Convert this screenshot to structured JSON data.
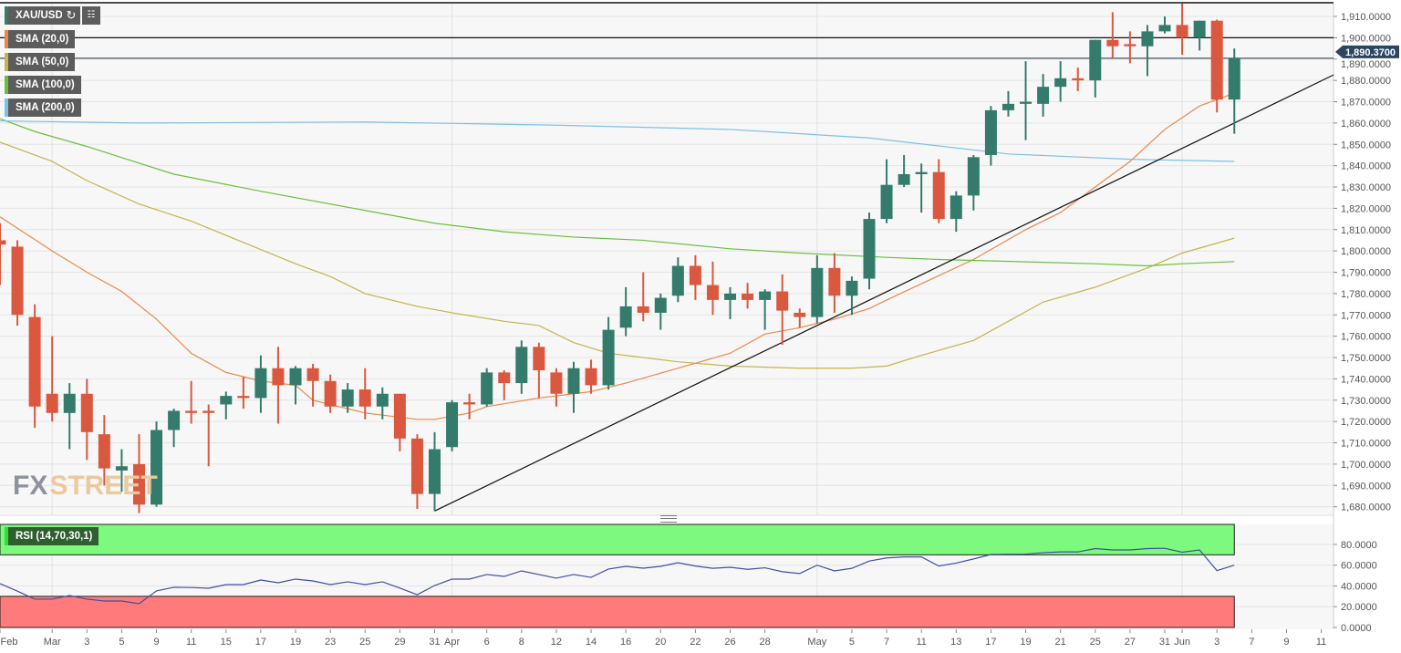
{
  "toolbar": {
    "symbol": "XAU/USD",
    "refresh_icon": "refresh-icon",
    "chart_settings_icon": "chart-settings-icon"
  },
  "legend": [
    {
      "label": "SMA (20,0)",
      "color": "#e8894a"
    },
    {
      "label": "SMA (50,0)",
      "color": "#c4b44c"
    },
    {
      "label": "SMA (100,0)",
      "color": "#6cbf3c"
    },
    {
      "label": "SMA (200,0)",
      "color": "#7cc0e8"
    }
  ],
  "watermark": {
    "part1": "FX",
    "part2": "STREET"
  },
  "rsi_label": "RSI (14,70,30,1)",
  "chart_data": {
    "type": "candlestick",
    "symbol": "XAU/USD",
    "colors": {
      "up": "#347b6c",
      "down": "#d9583f",
      "sma20": "#e8894a",
      "sma50": "#c4b44c",
      "sma100": "#6cbf3c",
      "sma200": "#7cc0e8",
      "rsi": "#3f4fa0",
      "overbought_zone": "#7dfa7d",
      "oversold_zone": "#ff7b7b",
      "price_tag": "#2c4563"
    },
    "ylim": [
      1676,
      1916
    ],
    "y_ticks": [
      "1,680.0000",
      "1,690.0000",
      "1,700.0000",
      "1,710.0000",
      "1,720.0000",
      "1,730.0000",
      "1,740.0000",
      "1,750.0000",
      "1,760.0000",
      "1,770.0000",
      "1,780.0000",
      "1,790.0000",
      "1,800.0000",
      "1,810.0000",
      "1,820.0000",
      "1,830.0000",
      "1,840.0000",
      "1,850.0000",
      "1,860.0000",
      "1,870.0000",
      "1,880.0000",
      "1,890.0000",
      "1,900.0000",
      "1,910.0000"
    ],
    "last_price_label": "1,890.3700",
    "last_price": 1890.37,
    "horizontal_lines": [
      1900,
      1890.37
    ],
    "trendline": [
      {
        "date": "Mar 31",
        "price": 1678
      },
      {
        "date": "Jun 4",
        "price": 1860
      }
    ],
    "candles_columns": [
      "date",
      "open",
      "high",
      "low",
      "close"
    ],
    "candles": [
      [
        "Feb 24",
        1805,
        1813,
        1784,
        1803
      ],
      [
        "Feb 25",
        1802,
        1805,
        1765,
        1770
      ],
      [
        "Feb 26",
        1769,
        1775,
        1717,
        1727
      ],
      [
        "Mar 1",
        1733,
        1760,
        1720,
        1724
      ],
      [
        "Mar 2",
        1724,
        1738,
        1707,
        1733
      ],
      [
        "Mar 3",
        1733,
        1740,
        1702,
        1715
      ],
      [
        "Mar 4",
        1714,
        1723,
        1690,
        1698
      ],
      [
        "Mar 5",
        1697,
        1707,
        1687,
        1699
      ],
      [
        "Mar 8",
        1700,
        1714,
        1677,
        1681
      ],
      [
        "Mar 9",
        1681,
        1720,
        1680,
        1716
      ],
      [
        "Mar 10",
        1716,
        1726,
        1708,
        1725
      ],
      [
        "Mar 11",
        1725,
        1739,
        1719,
        1724
      ],
      [
        "Mar 12",
        1725,
        1728,
        1699,
        1724
      ],
      [
        "Mar 15",
        1728,
        1734,
        1721,
        1732
      ],
      [
        "Mar 16",
        1732,
        1741,
        1726,
        1731
      ],
      [
        "Mar 17",
        1731,
        1751,
        1724,
        1745
      ],
      [
        "Mar 18",
        1745,
        1755,
        1719,
        1737
      ],
      [
        "Mar 19",
        1737,
        1746,
        1728,
        1745
      ],
      [
        "Mar 22",
        1745,
        1747,
        1727,
        1739
      ],
      [
        "Mar 23",
        1739,
        1742,
        1724,
        1727
      ],
      [
        "Mar 24",
        1727,
        1738,
        1724,
        1735
      ],
      [
        "Mar 25",
        1735,
        1745,
        1721,
        1727
      ],
      [
        "Mar 26",
        1727,
        1736,
        1721,
        1733
      ],
      [
        "Mar 29",
        1733,
        1733,
        1706,
        1712
      ],
      [
        "Mar 30",
        1712,
        1714,
        1679,
        1686
      ],
      [
        "Mar 31",
        1686,
        1715,
        1678,
        1707
      ],
      [
        "Apr 1",
        1708,
        1730,
        1706,
        1729
      ],
      [
        "Apr 5",
        1729,
        1733,
        1721,
        1728
      ],
      [
        "Apr 6",
        1728,
        1745,
        1727,
        1743
      ],
      [
        "Apr 7",
        1743,
        1744,
        1730,
        1738
      ],
      [
        "Apr 8",
        1738,
        1758,
        1733,
        1755
      ],
      [
        "Apr 9",
        1755,
        1757,
        1731,
        1744
      ],
      [
        "Apr 12",
        1743,
        1745,
        1727,
        1733
      ],
      [
        "Apr 13",
        1733,
        1748,
        1724,
        1745
      ],
      [
        "Apr 14",
        1745,
        1749,
        1733,
        1737
      ],
      [
        "Apr 15",
        1737,
        1769,
        1735,
        1763
      ],
      [
        "Apr 16",
        1764,
        1783,
        1760,
        1774
      ],
      [
        "Apr 19",
        1774,
        1790,
        1767,
        1771
      ],
      [
        "Apr 20",
        1771,
        1780,
        1763,
        1778
      ],
      [
        "Apr 21",
        1779,
        1797,
        1776,
        1793
      ],
      [
        "Apr 22",
        1793,
        1798,
        1777,
        1784
      ],
      [
        "Apr 23",
        1784,
        1795,
        1770,
        1777
      ],
      [
        "Apr 26",
        1777,
        1783,
        1768,
        1780
      ],
      [
        "Apr 27",
        1780,
        1785,
        1773,
        1777
      ],
      [
        "Apr 28",
        1777,
        1782,
        1763,
        1781
      ],
      [
        "Apr 29",
        1781,
        1789,
        1756,
        1772
      ],
      [
        "Apr 30",
        1771,
        1773,
        1764,
        1769
      ],
      [
        "May 3",
        1769,
        1798,
        1766,
        1792
      ],
      [
        "May 4",
        1792,
        1799,
        1771,
        1779
      ],
      [
        "May 5",
        1779,
        1788,
        1770,
        1786
      ],
      [
        "May 6",
        1787,
        1818,
        1782,
        1815
      ],
      [
        "May 7",
        1815,
        1843,
        1813,
        1831
      ],
      [
        "May 10",
        1831,
        1845,
        1830,
        1836
      ],
      [
        "May 11",
        1836,
        1841,
        1818,
        1837
      ],
      [
        "May 12",
        1837,
        1843,
        1813,
        1815
      ],
      [
        "May 13",
        1815,
        1828,
        1809,
        1826
      ],
      [
        "May 14",
        1826,
        1845,
        1819,
        1844
      ],
      [
        "May 17",
        1845,
        1868,
        1840,
        1866
      ],
      [
        "May 18",
        1866,
        1875,
        1863,
        1869
      ],
      [
        "May 19",
        1869,
        1889,
        1852,
        1870
      ],
      [
        "May 20",
        1869,
        1883,
        1863,
        1877
      ],
      [
        "May 21",
        1877,
        1889,
        1870,
        1881
      ],
      [
        "May 24",
        1881,
        1886,
        1875,
        1880
      ],
      [
        "May 25",
        1880,
        1899,
        1872,
        1899
      ],
      [
        "May 26",
        1899,
        1912,
        1890,
        1896
      ],
      [
        "May 27",
        1897,
        1903,
        1888,
        1896
      ],
      [
        "May 28",
        1896,
        1906,
        1882,
        1903
      ],
      [
        "May 31",
        1903,
        1910,
        1902,
        1906
      ],
      [
        "Jun 1",
        1906,
        1916,
        1892,
        1900
      ],
      [
        "Jun 2",
        1900,
        1908,
        1894,
        1908
      ],
      [
        "Jun 3",
        1908,
        1908.5,
        1865,
        1871
      ],
      [
        "Jun 4",
        1871,
        1895,
        1855,
        1890.37
      ]
    ],
    "sma": [
      {
        "name": "SMA (20,0)",
        "points": [
          [
            "Feb 24",
            1816
          ],
          [
            "Mar 1",
            1800
          ],
          [
            "Mar 3",
            1790
          ],
          [
            "Mar 5",
            1781
          ],
          [
            "Mar 9",
            1768
          ],
          [
            "Mar 11",
            1752
          ],
          [
            "Mar 15",
            1743
          ],
          [
            "Mar 17",
            1739
          ],
          [
            "Mar 19",
            1737
          ],
          [
            "Mar 22",
            1730
          ],
          [
            "Mar 25",
            1724
          ],
          [
            "Mar 30",
            1721
          ],
          [
            "Mar 31",
            1721
          ],
          [
            "Apr 5",
            1724
          ],
          [
            "Apr 6",
            1727
          ],
          [
            "Apr 9",
            1731
          ],
          [
            "Apr 14",
            1734
          ],
          [
            "Apr 16",
            1738
          ],
          [
            "Apr 21",
            1745
          ],
          [
            "Apr 26",
            1752
          ],
          [
            "Apr 28",
            1761
          ],
          [
            "Apr 30",
            1764
          ],
          [
            "May 4",
            1768
          ],
          [
            "May 6",
            1773
          ],
          [
            "May 7",
            1777
          ],
          [
            "May 14",
            1796
          ],
          [
            "May 19",
            1810
          ],
          [
            "May 21",
            1818
          ],
          [
            "May 25",
            1830
          ],
          [
            "May 27",
            1842
          ],
          [
            "May 31",
            1857
          ],
          [
            "Jun 2",
            1868
          ],
          [
            "Jun 4",
            1874
          ]
        ]
      },
      {
        "name": "SMA (50,0)",
        "points": [
          [
            "Feb 24",
            1851
          ],
          [
            "Mar 1",
            1842
          ],
          [
            "Mar 3",
            1833
          ],
          [
            "Mar 8",
            1822
          ],
          [
            "Mar 11",
            1814
          ],
          [
            "Mar 16",
            1804
          ],
          [
            "Mar 19",
            1794
          ],
          [
            "Mar 23",
            1788
          ],
          [
            "Mar 25",
            1780
          ],
          [
            "Mar 30",
            1774
          ],
          [
            "Apr 1",
            1771
          ],
          [
            "Apr 7",
            1767
          ],
          [
            "Apr 9",
            1765
          ],
          [
            "Apr 13",
            1757
          ],
          [
            "Apr 15",
            1752
          ],
          [
            "Apr 21",
            1748
          ],
          [
            "Apr 26",
            1746
          ],
          [
            "Apr 30",
            1745
          ],
          [
            "May 5",
            1745
          ],
          [
            "May 7",
            1746
          ],
          [
            "May 11",
            1751
          ],
          [
            "May 14",
            1758
          ],
          [
            "May 18",
            1767
          ],
          [
            "May 20",
            1776
          ],
          [
            "May 25",
            1783
          ],
          [
            "May 28",
            1792
          ],
          [
            "Jun 1",
            1799
          ],
          [
            "Jun 4",
            1806
          ]
        ]
      },
      {
        "name": "SMA (100,0)",
        "points": [
          [
            "Feb 24",
            1862
          ],
          [
            "Feb 26",
            1856
          ],
          [
            "Mar 3",
            1849
          ],
          [
            "Mar 10",
            1836
          ],
          [
            "Mar 17",
            1828
          ],
          [
            "Mar 25",
            1819
          ],
          [
            "Mar 31",
            1813
          ],
          [
            "Apr 7",
            1809
          ],
          [
            "Apr 13",
            1806.5
          ],
          [
            "Apr 19",
            1805
          ],
          [
            "Apr 26",
            1801
          ],
          [
            "Apr 30",
            1799
          ],
          [
            "May 7",
            1797
          ],
          [
            "May 12",
            1796
          ],
          [
            "May 25",
            1794
          ],
          [
            "May 28",
            1793
          ],
          [
            "Jun 1",
            1794
          ],
          [
            "Jun 4",
            1795
          ]
        ]
      },
      {
        "name": "SMA (200,0)",
        "points": [
          [
            "Feb 24",
            1861
          ],
          [
            "Mar 8",
            1860
          ],
          [
            "Mar 25",
            1860.5
          ],
          [
            "Apr 12",
            1859
          ],
          [
            "Apr 26",
            1857
          ],
          [
            "May 6",
            1853
          ],
          [
            "May 18",
            1845.5
          ],
          [
            "May 27",
            1843
          ],
          [
            "Jun 4",
            1842
          ]
        ]
      }
    ],
    "rsi": {
      "label": "RSI (14,70,30,1)",
      "ylim": [
        0,
        100
      ],
      "overbought": 70,
      "oversold": 30,
      "y_ticks": [
        "80.0000",
        "60.0000",
        "40.0000",
        "20.0000",
        "0.0000"
      ],
      "values": [
        42.2,
        35,
        27.3,
        27.3,
        30.8,
        27.3,
        25.5,
        25.5,
        22.9,
        35.2,
        38.7,
        38.5,
        37.8,
        41.3,
        41.3,
        45.7,
        43.1,
        46.6,
        44.8,
        41.3,
        44,
        41.3,
        44,
        38,
        31.6,
        40.4,
        46.6,
        46.6,
        51,
        49.2,
        54.5,
        51,
        47.5,
        51,
        48.3,
        56.3,
        58.9,
        57.1,
        58.9,
        62.4,
        59.2,
        57,
        58,
        56,
        57.5,
        53.7,
        52,
        60,
        54.5,
        57,
        64,
        67,
        68,
        68,
        59.2,
        62,
        66,
        70.3,
        70.5,
        70.7,
        72,
        72.8,
        72.8,
        76,
        74.7,
        74.7,
        76,
        76.3,
        72.5,
        74.7,
        54.8,
        60
      ]
    },
    "x_ticks": [
      {
        "label": "Feb",
        "date": "Feb 24"
      },
      {
        "label": "Mar",
        "date": "Mar 1"
      },
      {
        "label": "3",
        "date": "Mar 3"
      },
      {
        "label": "5",
        "date": "Mar 5"
      },
      {
        "label": "9",
        "date": "Mar 9"
      },
      {
        "label": "11",
        "date": "Mar 11"
      },
      {
        "label": "15",
        "date": "Mar 15"
      },
      {
        "label": "17",
        "date": "Mar 17"
      },
      {
        "label": "19",
        "date": "Mar 19"
      },
      {
        "label": "23",
        "date": "Mar 23"
      },
      {
        "label": "25",
        "date": "Mar 25"
      },
      {
        "label": "29",
        "date": "Mar 29"
      },
      {
        "label": "31",
        "date": "Mar 31"
      },
      {
        "label": "Apr",
        "date": "Apr 1"
      },
      {
        "label": "6",
        "date": "Apr 6"
      },
      {
        "label": "8",
        "date": "Apr 8"
      },
      {
        "label": "12",
        "date": "Apr 12"
      },
      {
        "label": "14",
        "date": "Apr 14"
      },
      {
        "label": "16",
        "date": "Apr 16"
      },
      {
        "label": "20",
        "date": "Apr 20"
      },
      {
        "label": "22",
        "date": "Apr 22"
      },
      {
        "label": "26",
        "date": "Apr 26"
      },
      {
        "label": "28",
        "date": "Apr 28"
      },
      {
        "label": "May",
        "date": "May 3"
      },
      {
        "label": "5",
        "date": "May 5"
      },
      {
        "label": "7",
        "date": "May 7"
      },
      {
        "label": "11",
        "date": "May 11"
      },
      {
        "label": "13",
        "date": "May 13"
      },
      {
        "label": "17",
        "date": "May 17"
      },
      {
        "label": "19",
        "date": "May 19"
      },
      {
        "label": "21",
        "date": "May 21"
      },
      {
        "label": "25",
        "date": "May 25"
      },
      {
        "label": "27",
        "date": "May 27"
      },
      {
        "label": "31",
        "date": "May 31"
      },
      {
        "label": "Jun",
        "date": "Jun 1"
      },
      {
        "label": "3",
        "date": "Jun 3"
      },
      {
        "label": "7",
        "date": "Jun 7"
      },
      {
        "label": "9",
        "date": "Jun 9"
      },
      {
        "label": "11",
        "date": "Jun 11"
      }
    ],
    "grid": true
  }
}
